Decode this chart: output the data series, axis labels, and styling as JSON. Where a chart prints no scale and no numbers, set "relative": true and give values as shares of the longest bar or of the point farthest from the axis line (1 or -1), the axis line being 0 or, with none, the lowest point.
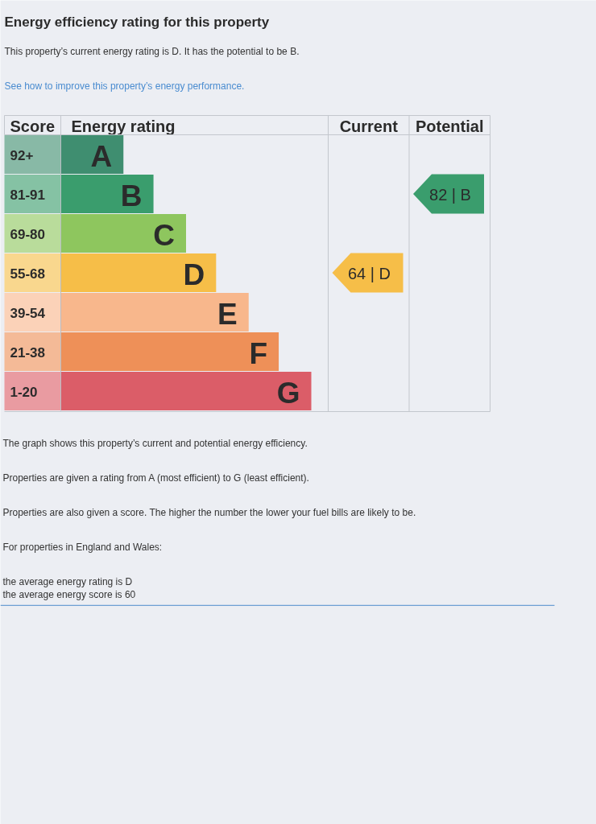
{
  "chart_data": {
    "type": "bar",
    "orientation": "horizontal",
    "relative": true,
    "title": "Energy efficiency rating for this property",
    "subtitle": "This property’s current energy rating is D. It has the potential to be B.",
    "ylabel": "Score",
    "xlabel": "Energy rating",
    "categories": [
      "92+",
      "81-91",
      "69-80",
      "55-68",
      "39-54",
      "21-38",
      "1-20"
    ],
    "values": [
      0.25,
      0.37,
      0.5,
      0.62,
      0.75,
      0.87,
      1
    ],
    "colors": [
      "#3f8e70",
      "#3a9d6d",
      "#8ec65e",
      "#f6be48",
      "#f8b78c",
      "#ee9058",
      "#db5d68"
    ],
    "annotations": [
      "See how to improve this property’s energy performance.",
      "Current",
      "64 | D",
      "Potential",
      "82 | B",
      {
        "text": "A",
        "x": 0.25,
        "y": "92+"
      },
      {
        "text": "B",
        "x": 0.37,
        "y": "81-91"
      },
      {
        "text": "C",
        "x": 0.5,
        "y": "69-80"
      },
      {
        "text": "D",
        "x": 0.62,
        "y": "55-68"
      },
      {
        "text": "E",
        "x": 0.75,
        "y": "39-54"
      },
      {
        "text": "F",
        "x": 0.87,
        "y": "21-38"
      },
      {
        "text": "G",
        "x": 1,
        "y": "1-20"
      },
      "The graph shows this property’s current and potential energy efficiency.",
      "Properties are given a rating from A (most efficient) to G (least efficient).",
      "Properties are also given a score. The higher the number the lower your fuel bills are likely to be.",
      "For properties in England and Wales:",
      "the average energy rating is D\nthe average energy score is 60"
    ]
  }
}
